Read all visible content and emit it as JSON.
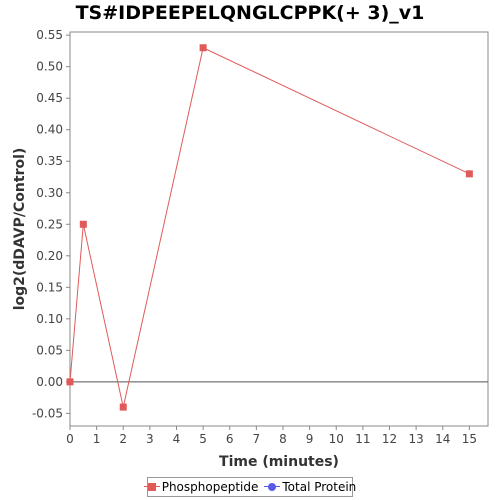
{
  "chart_data": {
    "type": "line",
    "title": "TS#IDPEEPELQNGLCPPK(+ 3)_v1",
    "xlabel": "Time (minutes)",
    "ylabel": "log2(dDAVP/Control)",
    "xlim": [
      0,
      15.7
    ],
    "ylim": [
      -0.07,
      0.555
    ],
    "xticks": [
      0,
      1,
      2,
      3,
      4,
      5,
      6,
      7,
      8,
      9,
      10,
      11,
      12,
      13,
      14,
      15
    ],
    "yticks": [
      -0.05,
      0.0,
      0.05,
      0.1,
      0.15,
      0.2,
      0.25,
      0.3,
      0.35,
      0.4,
      0.45,
      0.5,
      0.55
    ],
    "ytick_labels": [
      "-0.05",
      "0.00",
      "0.05",
      "0.10",
      "0.15",
      "0.20",
      "0.25",
      "0.30",
      "0.35",
      "0.40",
      "0.45",
      "0.50",
      "0.55"
    ],
    "grid": false,
    "zero_line": true,
    "legend_position": "bottom",
    "series": [
      {
        "name": "Phosphopeptide",
        "color": "#e05a5a",
        "marker": "square",
        "x": [
          0,
          0.5,
          2,
          5,
          15
        ],
        "y": [
          0.0,
          0.25,
          -0.04,
          0.53,
          0.33
        ]
      },
      {
        "name": "Total Protein",
        "color": "#5a5ae8",
        "marker": "circle",
        "x": [],
        "y": []
      }
    ]
  }
}
